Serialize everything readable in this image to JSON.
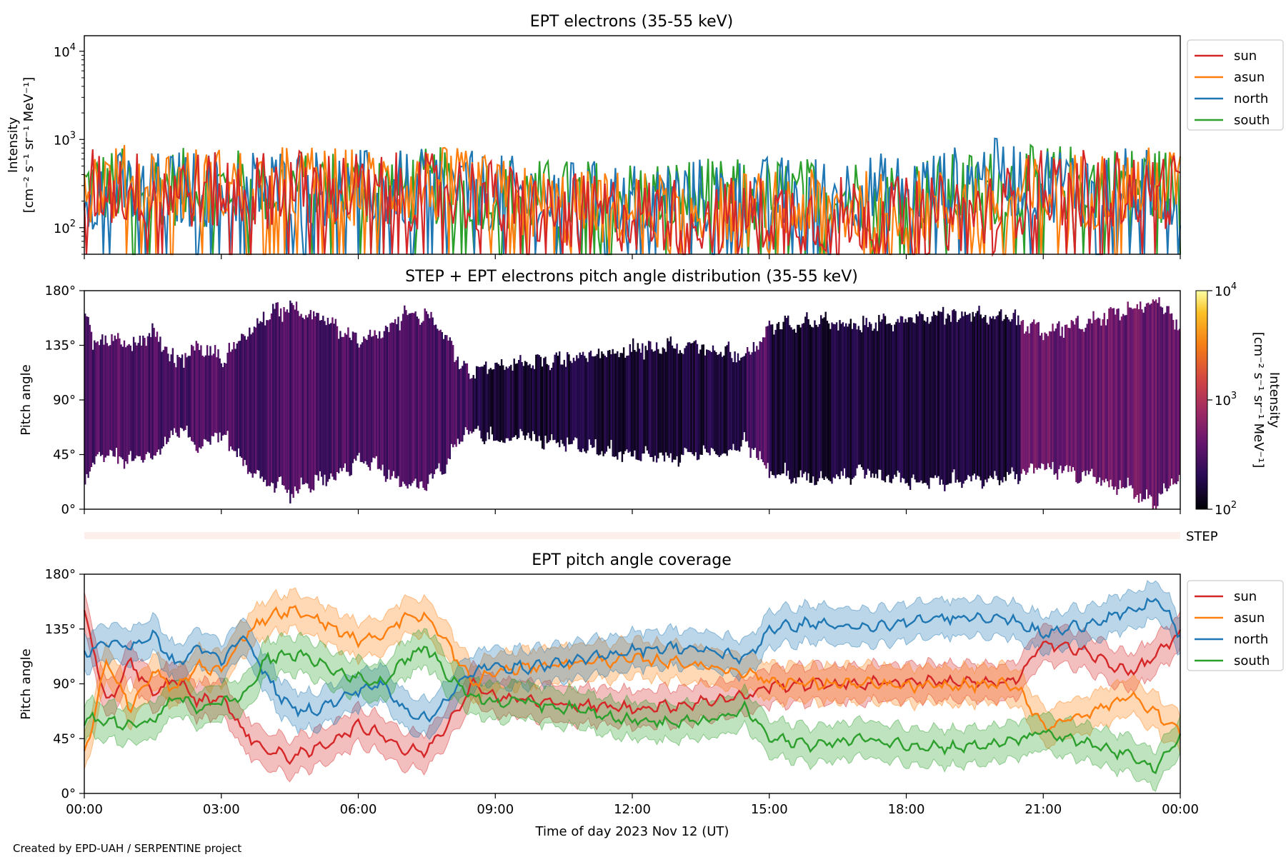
{
  "figure": {
    "credit": "Created by EPD-UAH / SERPENTINE project",
    "xlabel": "Time of day 2023 Nov 12 (UT)"
  },
  "chart_data": [
    {
      "type": "line",
      "title": "EPT electrons (35-55 keV)",
      "ylabel": "Intensity",
      "yunit": "[cm⁻² s⁻¹ sr⁻¹ MeV⁻¹]",
      "yscale": "log",
      "ylim": [
        50,
        15000
      ],
      "xlim": [
        "00:00",
        "24:00"
      ],
      "yticks": [
        {
          "base": "10",
          "exp": "2",
          "value": 100
        },
        {
          "base": "10",
          "exp": "3",
          "value": 1000
        },
        {
          "base": "10",
          "exp": "4",
          "value": 10000
        }
      ],
      "legend": "upper-right-outside",
      "series": [
        {
          "name": "sun",
          "color": "#d62728",
          "x": [
            0,
            1,
            2,
            3,
            4,
            5,
            6,
            7,
            8,
            9,
            10,
            11,
            12,
            13,
            14,
            15,
            16,
            17,
            18,
            19,
            20,
            21,
            22,
            23,
            24
          ],
          "y": [
            330,
            300,
            310,
            280,
            300,
            320,
            290,
            280,
            300,
            230,
            170,
            160,
            160,
            150,
            150,
            160,
            150,
            160,
            150,
            160,
            170,
            330,
            300,
            310,
            290
          ]
        },
        {
          "name": "asun",
          "color": "#ff7f0e",
          "x": [
            0,
            1,
            2,
            3,
            4,
            5,
            6,
            7,
            8,
            9,
            10,
            11,
            12,
            13,
            14,
            15,
            16,
            17,
            18,
            19,
            20,
            21,
            22,
            23,
            24
          ],
          "y": [
            360,
            350,
            340,
            330,
            340,
            350,
            320,
            320,
            330,
            250,
            190,
            180,
            180,
            170,
            170,
            180,
            180,
            180,
            180,
            190,
            200,
            280,
            300,
            330,
            340
          ]
        },
        {
          "name": "north",
          "color": "#1f77b4",
          "x": [
            0,
            1,
            2,
            3,
            4,
            5,
            6,
            7,
            8,
            9,
            10,
            11,
            12,
            13,
            14,
            15,
            16,
            17,
            18,
            19,
            20,
            21,
            22,
            23,
            24
          ],
          "y": [
            300,
            290,
            300,
            310,
            330,
            320,
            310,
            300,
            320,
            270,
            240,
            230,
            240,
            250,
            250,
            260,
            260,
            280,
            290,
            330,
            420,
            360,
            340,
            320,
            300
          ]
        },
        {
          "name": "south",
          "color": "#2ca02c",
          "x": [
            0,
            1,
            2,
            3,
            4,
            5,
            6,
            7,
            8,
            9,
            10,
            11,
            12,
            13,
            14,
            15,
            16,
            17,
            18,
            19,
            20,
            21,
            22,
            23,
            24
          ],
          "y": [
            320,
            330,
            320,
            310,
            320,
            330,
            320,
            310,
            330,
            280,
            240,
            240,
            240,
            250,
            240,
            250,
            250,
            260,
            260,
            280,
            320,
            350,
            360,
            340,
            330
          ]
        }
      ]
    },
    {
      "type": "heatmap",
      "title": "STEP + EPT electrons pitch angle distribution (35-55 keV)",
      "ylabel": "Pitch angle",
      "ylim": [
        0,
        180
      ],
      "yticks": [
        "0°",
        "45°",
        "90°",
        "135°",
        "180°"
      ],
      "xlim": [
        "00:00",
        "24:00"
      ],
      "colorbar": {
        "label": "Intensity",
        "unit": "[cm⁻² s⁻¹ sr⁻¹ MeV⁻¹]",
        "scale": "log",
        "range": [
          100,
          10000
        ],
        "colormap": "inferno",
        "ticks": [
          {
            "base": "10",
            "exp": "2"
          },
          {
            "base": "10",
            "exp": "3"
          },
          {
            "base": "10",
            "exp": "4"
          }
        ]
      },
      "step_panel": {
        "label": "STEP"
      }
    },
    {
      "type": "area",
      "title": "EPT pitch angle coverage",
      "ylabel": "Pitch angle",
      "ylim": [
        0,
        180
      ],
      "yticks": [
        "0°",
        "45°",
        "90°",
        "135°",
        "180°"
      ],
      "xlim": [
        "00:00",
        "24:00"
      ],
      "xticks": [
        "00:00",
        "03:00",
        "06:00",
        "09:00",
        "12:00",
        "15:00",
        "18:00",
        "21:00",
        "00:00"
      ],
      "legend": "upper-right-outside",
      "band_halfwidth_deg": 15,
      "series": [
        {
          "name": "sun",
          "color": "#d62728",
          "x": [
            0,
            0.5,
            1,
            1.5,
            2,
            2.5,
            3,
            3.5,
            4,
            4.5,
            5,
            5.5,
            6,
            6.5,
            7,
            7.5,
            8,
            8.5,
            9,
            9.5,
            10,
            11,
            12,
            13,
            14,
            14.5,
            15,
            16,
            17,
            18,
            19,
            20,
            20.5,
            21,
            21.5,
            22,
            22.5,
            23,
            23.5,
            24
          ],
          "y": [
            150,
            70,
            110,
            80,
            95,
            75,
            80,
            50,
            35,
            30,
            35,
            45,
            55,
            50,
            35,
            35,
            60,
            90,
            80,
            78,
            75,
            72,
            70,
            72,
            78,
            80,
            88,
            90,
            90,
            92,
            92,
            90,
            95,
            125,
            120,
            115,
            105,
            100,
            115,
            130
          ]
        },
        {
          "name": "asun",
          "color": "#ff7f0e",
          "x": [
            0,
            0.5,
            1,
            1.5,
            2,
            2.5,
            3,
            3.5,
            4,
            4.5,
            5,
            5.5,
            6,
            6.5,
            7,
            7.5,
            8,
            8.5,
            9,
            9.5,
            10,
            11,
            12,
            13,
            14,
            14.5,
            15,
            16,
            17,
            18,
            19,
            20,
            20.5,
            21,
            21.5,
            22,
            22.5,
            23,
            23.5,
            24
          ],
          "y": [
            30,
            110,
            70,
            100,
            85,
            105,
            100,
            130,
            145,
            150,
            145,
            135,
            125,
            130,
            145,
            145,
            120,
            90,
            100,
            102,
            105,
            108,
            110,
            108,
            102,
            100,
            92,
            90,
            90,
            88,
            88,
            90,
            85,
            55,
            60,
            65,
            75,
            80,
            65,
            50
          ]
        },
        {
          "name": "north",
          "color": "#1f77b4",
          "x": [
            0,
            0.5,
            1,
            1.5,
            2,
            2.5,
            3,
            3.5,
            4,
            4.5,
            5,
            5.5,
            6,
            6.5,
            7,
            7.5,
            8,
            8.5,
            9,
            9.5,
            10,
            11,
            12,
            13,
            14,
            14.5,
            15,
            16,
            17,
            18,
            19,
            20,
            20.5,
            21,
            21.5,
            22,
            22.5,
            23,
            23.5,
            24
          ],
          "y": [
            115,
            125,
            120,
            130,
            105,
            120,
            110,
            130,
            95,
            70,
            68,
            75,
            85,
            90,
            70,
            60,
            80,
            100,
            105,
            103,
            105,
            110,
            118,
            120,
            115,
            110,
            135,
            140,
            135,
            140,
            145,
            145,
            140,
            130,
            135,
            140,
            145,
            150,
            160,
            130
          ]
        },
        {
          "name": "south",
          "color": "#2ca02c",
          "x": [
            0,
            0.5,
            1,
            1.5,
            2,
            2.5,
            3,
            3.5,
            4,
            4.5,
            5,
            5.5,
            6,
            6.5,
            7,
            7.5,
            8,
            8.5,
            9,
            9.5,
            10,
            11,
            12,
            13,
            14,
            14.5,
            15,
            16,
            17,
            18,
            19,
            20,
            20.5,
            21,
            21.5,
            22,
            22.5,
            23,
            23.5,
            24
          ],
          "y": [
            60,
            60,
            55,
            60,
            80,
            70,
            75,
            80,
            110,
            115,
            110,
            100,
            95,
            90,
            110,
            120,
            95,
            80,
            75,
            77,
            73,
            68,
            60,
            58,
            62,
            70,
            45,
            40,
            45,
            40,
            38,
            40,
            45,
            50,
            45,
            40,
            35,
            30,
            20,
            48
          ]
        }
      ]
    }
  ]
}
